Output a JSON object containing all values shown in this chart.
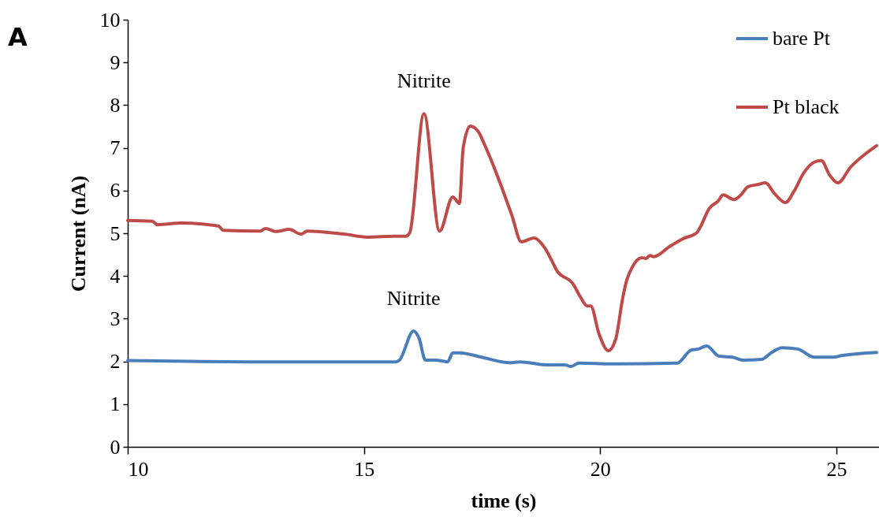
{
  "chart_data": {
    "type": "line",
    "xlabel": "time (s)",
    "ylabel": "Current (nA)",
    "xlim": [
      10,
      25.9
    ],
    "xticks": [
      10,
      15,
      20,
      25
    ],
    "ylim": [
      0,
      10
    ],
    "yticks": [
      0,
      1,
      2,
      3,
      4,
      5,
      6,
      7,
      8,
      9,
      10
    ],
    "grid": false,
    "legend": "top right",
    "marker": "none",
    "line_style": "solid",
    "annotations": [
      "A",
      {
        "text": "Nitrite",
        "x": 16.27,
        "y": 7.8
      },
      {
        "text": "Nitrite",
        "x": 16.05,
        "y": 2.71
      }
    ],
    "series": [
      {
        "name": "bare Pt",
        "color": "#4a7ebb",
        "x": [
          10,
          11.3,
          12.6,
          14.63,
          15.68,
          15.75,
          16.05,
          16.17,
          16.3,
          16.52,
          16.77,
          16.88,
          17.02,
          17.52,
          18.08,
          18.3,
          18.85,
          19.25,
          19.38,
          19.55,
          20.3,
          21.63,
          21.93,
          22.08,
          22.25,
          22.52,
          22.8,
          23.02,
          23.42,
          23.63,
          23.85,
          24.18,
          24.52,
          24.92,
          25.13,
          25.85
        ],
        "values": [
          2.02,
          2.0,
          1.99,
          1.99,
          1.99,
          2.03,
          2.71,
          2.53,
          2.03,
          2.03,
          1.99,
          2.2,
          2.2,
          2.09,
          1.97,
          1.99,
          1.92,
          1.92,
          1.88,
          1.96,
          1.94,
          1.96,
          2.27,
          2.29,
          2.36,
          2.12,
          2.1,
          2.03,
          2.05,
          2.21,
          2.32,
          2.29,
          2.1,
          2.1,
          2.14,
          2.21
        ]
      },
      {
        "name": "Pt black",
        "color": "#be4b48",
        "x": [
          10,
          10.52,
          10.63,
          11.13,
          11.92,
          12.02,
          12.8,
          12.92,
          13.13,
          13.42,
          13.67,
          13.8,
          14.58,
          15.08,
          15.63,
          15.88,
          15.97,
          16.27,
          16.6,
          16.88,
          17.02,
          17.1,
          17.25,
          17.42,
          17.55,
          17.85,
          18.13,
          18.33,
          18.6,
          18.83,
          18.97,
          19.08,
          19.42,
          19.58,
          19.72,
          19.8,
          19.97,
          20.17,
          20.33,
          20.47,
          20.55,
          20.67,
          20.88,
          20.97,
          21.05,
          21.13,
          21.47,
          21.75,
          22.05,
          22.13,
          22.3,
          22.5,
          22.6,
          22.83,
          22.97,
          23.13,
          23.33,
          23.5,
          23.68,
          23.92,
          24.1,
          24.3,
          24.52,
          24.68,
          24.85,
          25.03,
          25.3,
          25.58,
          25.85
        ],
        "values": [
          5.3,
          5.28,
          5.2,
          5.24,
          5.17,
          5.07,
          5.05,
          5.11,
          5.04,
          5.09,
          4.98,
          5.05,
          4.98,
          4.91,
          4.93,
          4.93,
          5.02,
          7.8,
          5.05,
          5.85,
          5.7,
          7.0,
          7.51,
          7.38,
          7.08,
          6.27,
          5.42,
          4.8,
          4.89,
          4.65,
          4.37,
          4.13,
          3.82,
          3.51,
          3.3,
          3.3,
          2.66,
          2.25,
          2.53,
          3.45,
          3.86,
          4.19,
          4.43,
          4.41,
          4.48,
          4.45,
          4.69,
          4.87,
          5.02,
          5.17,
          5.57,
          5.76,
          5.9,
          5.79,
          5.89,
          6.09,
          6.14,
          6.18,
          5.94,
          5.72,
          5.98,
          6.4,
          6.66,
          6.7,
          6.37,
          6.18,
          6.55,
          6.83,
          7.05
        ]
      }
    ]
  }
}
